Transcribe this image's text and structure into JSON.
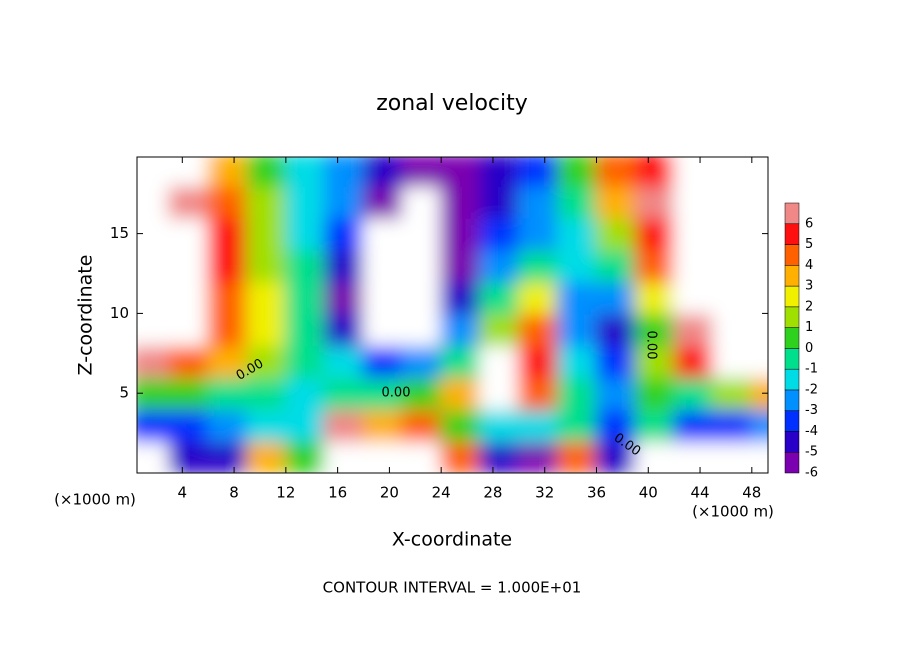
{
  "chart_data": {
    "type": "heatmap",
    "title": "zonal velocity",
    "x_label": "X-coordinate",
    "y_label": "Z-coordinate",
    "x_unit_label": "(×1000 m)",
    "footer": "CONTOUR INTERVAL = 1.000E+01",
    "contour_labels": [
      "0.00",
      "0.00",
      "0.00",
      "0.00"
    ],
    "xlim": [
      0.5,
      49.25
    ],
    "ylim": [
      0,
      19.8
    ],
    "xticks": [
      4,
      8,
      12,
      16,
      20,
      24,
      28,
      32,
      36,
      40,
      44,
      48
    ],
    "yticks": [
      5,
      10,
      15
    ],
    "x": [
      1.5,
      4.5,
      7.5,
      10.5,
      13.5,
      16.5,
      19.5,
      22.5,
      25.5,
      28.5,
      31.5,
      34.5,
      37.5,
      40.5,
      43.5,
      46.5,
      49.5
    ],
    "z": [
      1,
      3,
      5,
      7,
      9,
      11,
      13,
      15,
      17,
      19
    ],
    "values": [
      [
        -8,
        -5,
        -5,
        3,
        0,
        8,
        8,
        8,
        4,
        -5,
        -6,
        4,
        -5,
        8,
        8,
        8,
        8
      ],
      [
        -4,
        -4,
        -3,
        -2,
        -2,
        6,
        3,
        4,
        0,
        -2,
        -2,
        -1,
        -4,
        -1,
        -4,
        -4,
        -3
      ],
      [
        0,
        0,
        -0.5,
        -1,
        -1.5,
        -1,
        -1,
        0,
        3,
        8,
        4,
        -1,
        -3,
        0,
        -1,
        1,
        3
      ],
      [
        6,
        4,
        3,
        1,
        -1,
        -2,
        -4,
        -3,
        -1,
        8,
        5,
        -2,
        -4,
        1,
        5,
        8,
        8
      ],
      [
        8,
        7,
        4,
        2,
        -1,
        -5,
        -8,
        -7,
        -3,
        1,
        4,
        -3,
        -5,
        0,
        6,
        8,
        8
      ],
      [
        8,
        8,
        4.5,
        2,
        -1,
        -6,
        -8,
        -8,
        -5,
        -1,
        2,
        -3,
        -3,
        2,
        8,
        8,
        8
      ],
      [
        8,
        8,
        5,
        1.5,
        -1,
        -5,
        -8,
        -8,
        -6,
        -3,
        -1,
        -2,
        -1,
        4,
        8,
        8,
        8
      ],
      [
        8,
        8,
        5,
        1,
        -1.5,
        -4,
        -8,
        -8,
        -6,
        -4,
        -2.5,
        -1.5,
        1,
        5,
        8,
        8,
        8
      ],
      [
        8,
        6,
        4,
        1,
        -1.5,
        -3,
        -6,
        -8,
        -6,
        -4.5,
        -3,
        -1,
        3,
        6,
        8,
        8,
        8
      ],
      [
        8,
        8,
        3,
        0.5,
        -2,
        -3,
        -5,
        -6,
        -5.5,
        -4.5,
        -4,
        0,
        4,
        5,
        8,
        8,
        8
      ]
    ],
    "levels": [
      -6,
      -5,
      -4,
      -3,
      -2,
      -1,
      0,
      1,
      2,
      3,
      4,
      5,
      6
    ],
    "colors": [
      "#7a00b0",
      "#2800c8",
      "#0030ff",
      "#0090ff",
      "#00dce6",
      "#00e08c",
      "#2ed21e",
      "#a0e000",
      "#f0f000",
      "#ffb000",
      "#ff6000",
      "#ff1010",
      "#f08888"
    ]
  }
}
